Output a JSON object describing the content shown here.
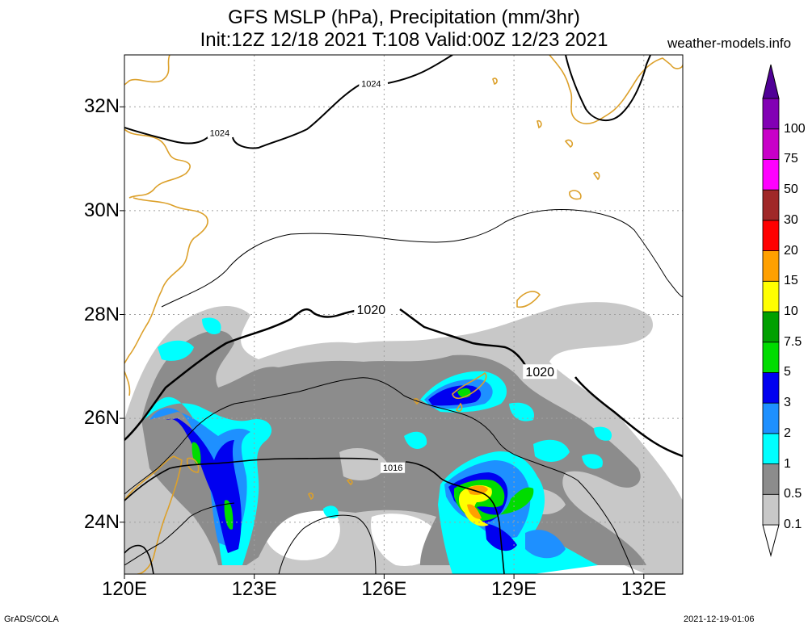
{
  "title": {
    "line1": "GFS MSLP (hPa), Precipitation (mm/3hr)",
    "line2": "Init:12Z 12/18 2021 T:108 Valid:00Z 12/23 2021"
  },
  "website": "weather-models.info",
  "footer": {
    "left": "GrADS/COLA",
    "right": "2021-12-19-01:06"
  },
  "map": {
    "lat_range": [
      23,
      33
    ],
    "lon_range": [
      120,
      132.9
    ],
    "lat_ticks": [
      {
        "value": 24,
        "label": "24N"
      },
      {
        "value": 26,
        "label": "26N"
      },
      {
        "value": 28,
        "label": "28N"
      },
      {
        "value": 30,
        "label": "30N"
      },
      {
        "value": 32,
        "label": "32N"
      }
    ],
    "lon_ticks": [
      {
        "value": 120,
        "label": "120E"
      },
      {
        "value": 123,
        "label": "123E"
      },
      {
        "value": 126,
        "label": "126E"
      },
      {
        "value": 129,
        "label": "129E"
      },
      {
        "value": 132,
        "label": "132E"
      }
    ],
    "isobar_labels": [
      {
        "text": "1024",
        "lon": 125.7,
        "lat": 32.45
      },
      {
        "text": "1024",
        "lon": 122.2,
        "lat": 31.5
      },
      {
        "text": "1020",
        "lon": 125.7,
        "lat": 28.1
      },
      {
        "text": "1020",
        "lon": 129.6,
        "lat": 26.9
      },
      {
        "text": "1016",
        "lon": 126.2,
        "lat": 25.05
      }
    ],
    "colors": {
      "coast": "#dca02a",
      "isobar": "#000000",
      "grid": "#a0a0a0"
    }
  },
  "colorbar": {
    "levels": [
      {
        "label": "0.1",
        "color": "#c8c8c8"
      },
      {
        "label": "0.5",
        "color": "#8c8c8c"
      },
      {
        "label": "1",
        "color": "#00ffff"
      },
      {
        "label": "2",
        "color": "#1e90ff"
      },
      {
        "label": "3",
        "color": "#0000f0"
      },
      {
        "label": "5",
        "color": "#00dc00"
      },
      {
        "label": "7.5",
        "color": "#00a000"
      },
      {
        "label": "10",
        "color": "#ffff00"
      },
      {
        "label": "15",
        "color": "#ffa000"
      },
      {
        "label": "20",
        "color": "#ff0000"
      },
      {
        "label": "30",
        "color": "#a02828"
      },
      {
        "label": "50",
        "color": "#ff00ff"
      },
      {
        "label": "75",
        "color": "#c800c8"
      },
      {
        "label": "100",
        "color": "#8200b4"
      }
    ],
    "top_color": "#500096"
  }
}
